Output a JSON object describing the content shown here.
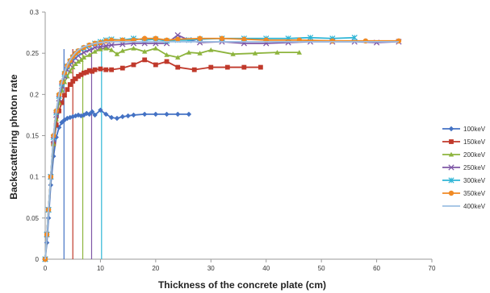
{
  "chart_data": {
    "type": "line",
    "title": "",
    "xlabel": "Thickness of the concrete plate (cm)",
    "ylabel": "Backscattering photon rate",
    "xlim": [
      0,
      70
    ],
    "ylim": [
      0,
      0.3
    ],
    "xticks": [
      "0",
      "10",
      "20",
      "30",
      "40",
      "50",
      "60",
      "70"
    ],
    "yticks": [
      "0",
      "0.05",
      "0.1",
      "0.15",
      "0.2",
      "0.25",
      "0.3"
    ],
    "grid": false,
    "legend_position": "right",
    "series": [
      {
        "name": "100keV",
        "color": "#4472c4",
        "marker": "diamond",
        "x": [
          0,
          0.3,
          0.6,
          1,
          1.5,
          2,
          2.5,
          3,
          3.5,
          4,
          4.5,
          5,
          5.5,
          6,
          6.5,
          7,
          7.5,
          8,
          8.5,
          9,
          10,
          11,
          12,
          13,
          14,
          15,
          16,
          18,
          20,
          22,
          24,
          26
        ],
        "y": [
          0,
          0.02,
          0.05,
          0.09,
          0.125,
          0.148,
          0.16,
          0.166,
          0.169,
          0.171,
          0.172,
          0.173,
          0.174,
          0.175,
          0.174,
          0.175,
          0.177,
          0.176,
          0.179,
          0.175,
          0.181,
          0.176,
          0.172,
          0.171,
          0.173,
          0.174,
          0.175,
          0.176,
          0.176,
          0.176,
          0.176,
          0.176
        ]
      },
      {
        "name": "150keV",
        "color": "#c0392b",
        "marker": "square",
        "x": [
          0,
          0.3,
          0.6,
          1,
          1.5,
          2,
          2.5,
          3,
          3.5,
          4,
          4.5,
          5,
          5.5,
          6,
          6.5,
          7,
          7.5,
          8,
          8.5,
          9,
          10,
          11,
          12,
          14,
          16,
          18,
          20,
          22,
          24,
          27,
          30,
          33,
          36,
          39
        ],
        "y": [
          0,
          0.03,
          0.06,
          0.1,
          0.14,
          0.163,
          0.18,
          0.19,
          0.199,
          0.206,
          0.212,
          0.216,
          0.219,
          0.222,
          0.224,
          0.226,
          0.227,
          0.229,
          0.228,
          0.23,
          0.231,
          0.23,
          0.23,
          0.232,
          0.236,
          0.242,
          0.236,
          0.24,
          0.233,
          0.23,
          0.233,
          0.233,
          0.233,
          0.233
        ]
      },
      {
        "name": "200keV",
        "color": "#8db43d",
        "marker": "triangle",
        "x": [
          0,
          0.3,
          0.6,
          1,
          1.5,
          2,
          2.5,
          3,
          3.5,
          4,
          4.5,
          5,
          5.5,
          6,
          6.5,
          7,
          8,
          9,
          10,
          11,
          12,
          13,
          14,
          16,
          18,
          20,
          22,
          24,
          26,
          28,
          30,
          34,
          38,
          42,
          46
        ],
        "y": [
          0,
          0.03,
          0.06,
          0.1,
          0.14,
          0.17,
          0.19,
          0.205,
          0.215,
          0.222,
          0.228,
          0.233,
          0.237,
          0.24,
          0.242,
          0.245,
          0.248,
          0.252,
          0.255,
          0.256,
          0.254,
          0.249,
          0.253,
          0.256,
          0.252,
          0.256,
          0.248,
          0.245,
          0.251,
          0.25,
          0.254,
          0.249,
          0.25,
          0.251,
          0.251
        ]
      },
      {
        "name": "250keV",
        "color": "#7e57a6",
        "marker": "x",
        "x": [
          0,
          0.3,
          0.6,
          1,
          1.5,
          2,
          2.5,
          3,
          3.5,
          4,
          4.5,
          5,
          5.5,
          6,
          7,
          8,
          9,
          10,
          11,
          12,
          14,
          16,
          18,
          20,
          22,
          24,
          26,
          28,
          32,
          36,
          40,
          44,
          48,
          52,
          56,
          60,
          64
        ],
        "y": [
          0,
          0.03,
          0.06,
          0.1,
          0.145,
          0.175,
          0.195,
          0.21,
          0.222,
          0.23,
          0.236,
          0.241,
          0.244,
          0.247,
          0.251,
          0.254,
          0.257,
          0.258,
          0.259,
          0.26,
          0.261,
          0.262,
          0.262,
          0.262,
          0.262,
          0.272,
          0.266,
          0.263,
          0.264,
          0.262,
          0.262,
          0.263,
          0.264,
          0.264,
          0.264,
          0.263,
          0.264
        ]
      },
      {
        "name": "300keV",
        "color": "#2eb5d6",
        "marker": "star",
        "x": [
          0,
          0.3,
          0.6,
          1,
          1.5,
          2,
          2.5,
          3,
          3.5,
          4,
          4.5,
          5,
          5.5,
          6,
          7,
          8,
          9,
          10,
          11,
          12,
          14,
          16,
          18,
          20,
          22,
          24,
          26,
          28,
          32,
          36,
          40,
          44,
          48,
          52,
          56
        ],
        "y": [
          0,
          0.03,
          0.06,
          0.1,
          0.148,
          0.178,
          0.198,
          0.213,
          0.225,
          0.234,
          0.24,
          0.245,
          0.249,
          0.252,
          0.256,
          0.259,
          0.262,
          0.264,
          0.266,
          0.267,
          0.266,
          0.268,
          0.266,
          0.267,
          0.265,
          0.266,
          0.266,
          0.267,
          0.268,
          0.268,
          0.268,
          0.268,
          0.269,
          0.268,
          0.269
        ]
      },
      {
        "name": "350keV",
        "color": "#f08a24",
        "marker": "circle",
        "x": [
          0,
          0.3,
          0.6,
          1,
          1.5,
          2,
          2.5,
          3,
          3.5,
          4,
          4.5,
          5,
          5.5,
          6,
          7,
          8,
          9,
          10,
          11,
          12,
          14,
          16,
          18,
          20,
          22,
          24,
          28,
          32,
          36,
          40,
          46,
          52,
          58,
          64
        ],
        "y": [
          0,
          0.03,
          0.06,
          0.1,
          0.15,
          0.18,
          0.2,
          0.215,
          0.226,
          0.235,
          0.241,
          0.246,
          0.25,
          0.253,
          0.257,
          0.26,
          0.262,
          0.263,
          0.265,
          0.266,
          0.266,
          0.266,
          0.268,
          0.268,
          0.266,
          0.267,
          0.268,
          0.268,
          0.267,
          0.266,
          0.266,
          0.265,
          0.265,
          0.265
        ]
      },
      {
        "name": "400keV",
        "color": "#9dbfe3",
        "marker": "none",
        "x": [
          0,
          0.3,
          0.6,
          1,
          1.5,
          2,
          2.5,
          3,
          3.5,
          4,
          4.5,
          5,
          5.5,
          6,
          7,
          8,
          9,
          10,
          11,
          12,
          14,
          16,
          18,
          20,
          24,
          28,
          32,
          36,
          40,
          46,
          52,
          58,
          64
        ],
        "y": [
          0,
          0.03,
          0.06,
          0.1,
          0.15,
          0.18,
          0.2,
          0.215,
          0.227,
          0.236,
          0.242,
          0.247,
          0.251,
          0.254,
          0.258,
          0.26,
          0.262,
          0.263,
          0.264,
          0.264,
          0.264,
          0.264,
          0.264,
          0.264,
          0.264,
          0.264,
          0.264,
          0.264,
          0.264,
          0.264,
          0.264,
          0.264,
          0.264
        ]
      }
    ],
    "vertical_lines": [
      {
        "x": 3.4,
        "color": "#4472c4"
      },
      {
        "x": 5.0,
        "color": "#c0392b"
      },
      {
        "x": 6.8,
        "color": "#8db43d"
      },
      {
        "x": 8.4,
        "color": "#7e57a6"
      },
      {
        "x": 10.2,
        "color": "#2eb5d6"
      }
    ]
  }
}
